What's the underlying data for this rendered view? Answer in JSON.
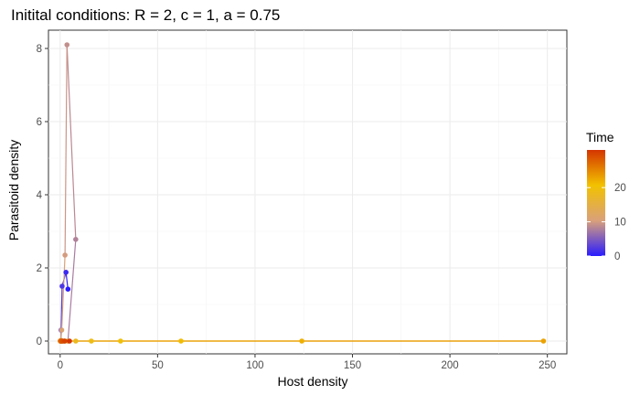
{
  "chart_data": {
    "type": "line",
    "title": "Initital conditions: R = 2, c = 1, a = 0.75",
    "xlabel": "Host density",
    "ylabel": "Parasitoid density",
    "xlim": [
      -6,
      260
    ],
    "ylim": [
      -0.35,
      8.5
    ],
    "x_ticks": [
      0,
      50,
      100,
      150,
      200,
      250
    ],
    "y_ticks": [
      0,
      2,
      4,
      6,
      8
    ],
    "grid": true,
    "legend": {
      "title": "Time",
      "position": "right",
      "ticks": [
        0,
        10,
        20
      ],
      "range": [
        0,
        31
      ],
      "colors": [
        "#2a1cff",
        "#d9a07b",
        "#f2c200",
        "#d43500"
      ]
    },
    "series": [
      {
        "time": [
          0,
          1,
          2,
          3,
          4,
          5,
          6,
          7,
          8,
          9,
          10,
          11,
          12,
          13,
          14,
          15,
          16,
          17,
          18,
          19,
          20,
          21,
          22,
          23,
          24,
          25,
          26,
          27,
          28,
          29,
          30,
          31
        ],
        "x": [
          4,
          3,
          1,
          0.5,
          0.5,
          1,
          2,
          4,
          8,
          3.5,
          2.5,
          0.8,
          0.4,
          0.4,
          0.5,
          1,
          2,
          4,
          8,
          16,
          31,
          62,
          124,
          248,
          0.2,
          0.1,
          0.1,
          0.3,
          0.6,
          1.2,
          2.4,
          4.8
        ],
        "y": [
          1.42,
          1.88,
          1.5,
          0.3,
          0,
          0,
          0,
          0,
          2.78,
          8.1,
          2.35,
          0.3,
          0.02,
          0,
          0,
          0,
          0,
          0,
          0,
          0,
          0,
          0,
          0,
          0,
          0,
          0,
          0,
          0,
          0,
          0,
          0,
          0
        ]
      }
    ]
  }
}
